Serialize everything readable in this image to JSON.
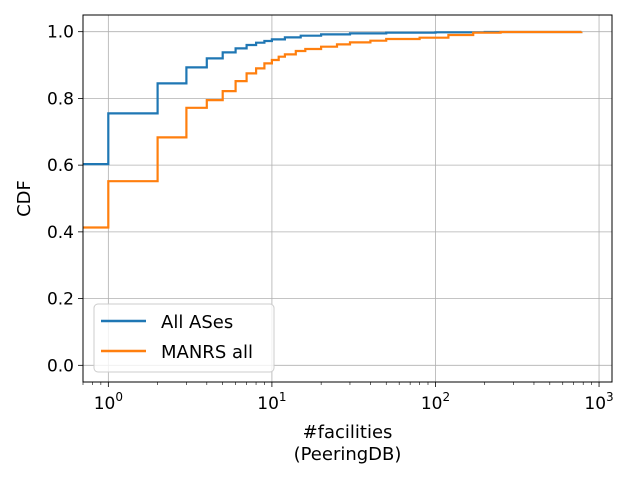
{
  "chart_data": {
    "type": "line",
    "xlabel_lines": [
      "#facilities",
      "(PeeringDB)"
    ],
    "ylabel": "CDF",
    "xscale": "log",
    "xlim": [
      0.7,
      1200
    ],
    "ylim": [
      -0.05,
      1.05
    ],
    "grid": true,
    "legend_position": "lower-left",
    "x_ticks": [
      {
        "value": 1,
        "base": "10",
        "exp": "0"
      },
      {
        "value": 10,
        "base": "10",
        "exp": "1"
      },
      {
        "value": 100,
        "base": "10",
        "exp": "2"
      },
      {
        "value": 1000,
        "base": "10",
        "exp": "3"
      }
    ],
    "y_ticks": [
      {
        "value": 0.0,
        "label": "0.0"
      },
      {
        "value": 0.2,
        "label": "0.2"
      },
      {
        "value": 0.4,
        "label": "0.4"
      },
      {
        "value": 0.6,
        "label": "0.6"
      },
      {
        "value": 0.8,
        "label": "0.8"
      },
      {
        "value": 1.0,
        "label": "1.0"
      }
    ],
    "series": [
      {
        "name": "All ASes",
        "color": "#1f77b4",
        "points": [
          [
            0.7,
            0.603
          ],
          [
            1,
            0.755
          ],
          [
            2,
            0.845
          ],
          [
            3,
            0.893
          ],
          [
            4,
            0.92
          ],
          [
            5,
            0.938
          ],
          [
            6,
            0.95
          ],
          [
            7,
            0.96
          ],
          [
            8,
            0.967
          ],
          [
            9,
            0.972
          ],
          [
            10,
            0.977
          ],
          [
            12,
            0.983
          ],
          [
            15,
            0.988
          ],
          [
            20,
            0.992
          ],
          [
            30,
            0.995
          ],
          [
            50,
            0.997
          ],
          [
            100,
            0.998
          ],
          [
            200,
            0.999
          ],
          [
            780,
            1.0
          ]
        ]
      },
      {
        "name": "MANRS all",
        "color": "#ff7f0e",
        "points": [
          [
            0.7,
            0.413
          ],
          [
            1,
            0.552
          ],
          [
            2,
            0.683
          ],
          [
            3,
            0.772
          ],
          [
            4,
            0.795
          ],
          [
            5,
            0.822
          ],
          [
            6,
            0.852
          ],
          [
            7,
            0.875
          ],
          [
            8,
            0.89
          ],
          [
            9,
            0.905
          ],
          [
            10,
            0.915
          ],
          [
            11,
            0.925
          ],
          [
            12,
            0.932
          ],
          [
            14,
            0.942
          ],
          [
            16,
            0.948
          ],
          [
            20,
            0.955
          ],
          [
            25,
            0.962
          ],
          [
            30,
            0.968
          ],
          [
            40,
            0.973
          ],
          [
            50,
            0.978
          ],
          [
            80,
            0.982
          ],
          [
            120,
            0.99
          ],
          [
            170,
            0.997
          ],
          [
            250,
            0.999
          ],
          [
            780,
            1.0
          ]
        ]
      }
    ]
  }
}
